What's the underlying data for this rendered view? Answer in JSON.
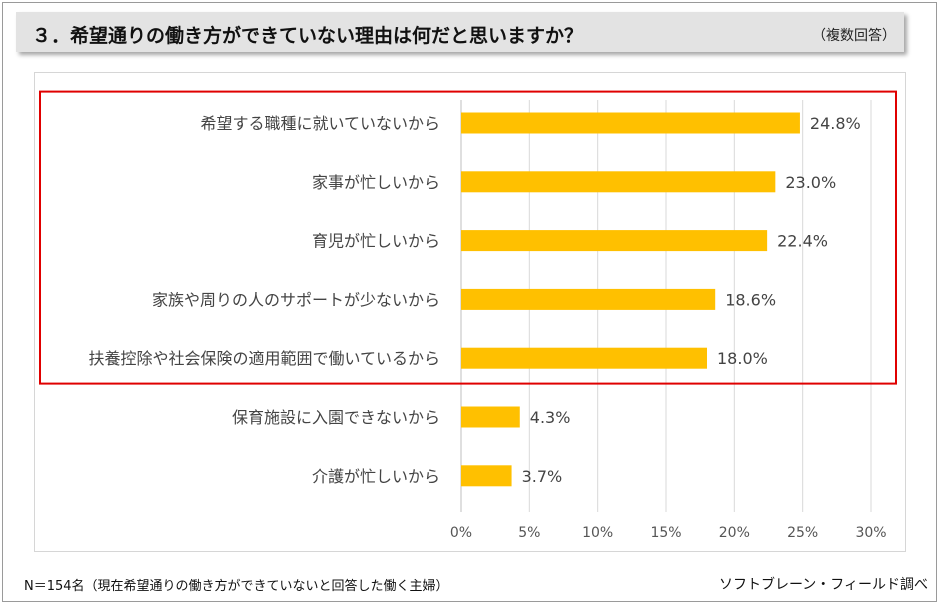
{
  "header": {
    "title": "３．希望通りの働き方ができていない理由は何だと思いますか？",
    "note": "（複数回答）"
  },
  "chart_data": {
    "type": "bar",
    "orientation": "horizontal",
    "categories": [
      "希望する職種に就いていないから",
      "家事が忙しいから",
      "育児が忙しいから",
      "家族や周りの人のサポートが少ないから",
      "扶養控除や社会保険の適用範囲で働いているから",
      "保育施設に入園できないから",
      "介護が忙しいから"
    ],
    "values": [
      24.8,
      23.0,
      22.4,
      18.6,
      18.0,
      4.3,
      3.7
    ],
    "value_labels": [
      "24.8%",
      "23.0%",
      "22.4%",
      "18.6%",
      "18.0%",
      "4.3%",
      "3.7%"
    ],
    "xlim": [
      0,
      30
    ],
    "xticks": [
      "0%",
      "5%",
      "10%",
      "15%",
      "20%",
      "25%",
      "30%"
    ],
    "grid": true,
    "bar_color": "#FFC000",
    "highlight_color": "#E00000",
    "highlighted_categories": 5
  },
  "footer": {
    "left": "N＝154名（現在希望通りの働き方ができていないと回答した働く主婦）",
    "right": "ソフトブレーン・フィールド調べ"
  }
}
